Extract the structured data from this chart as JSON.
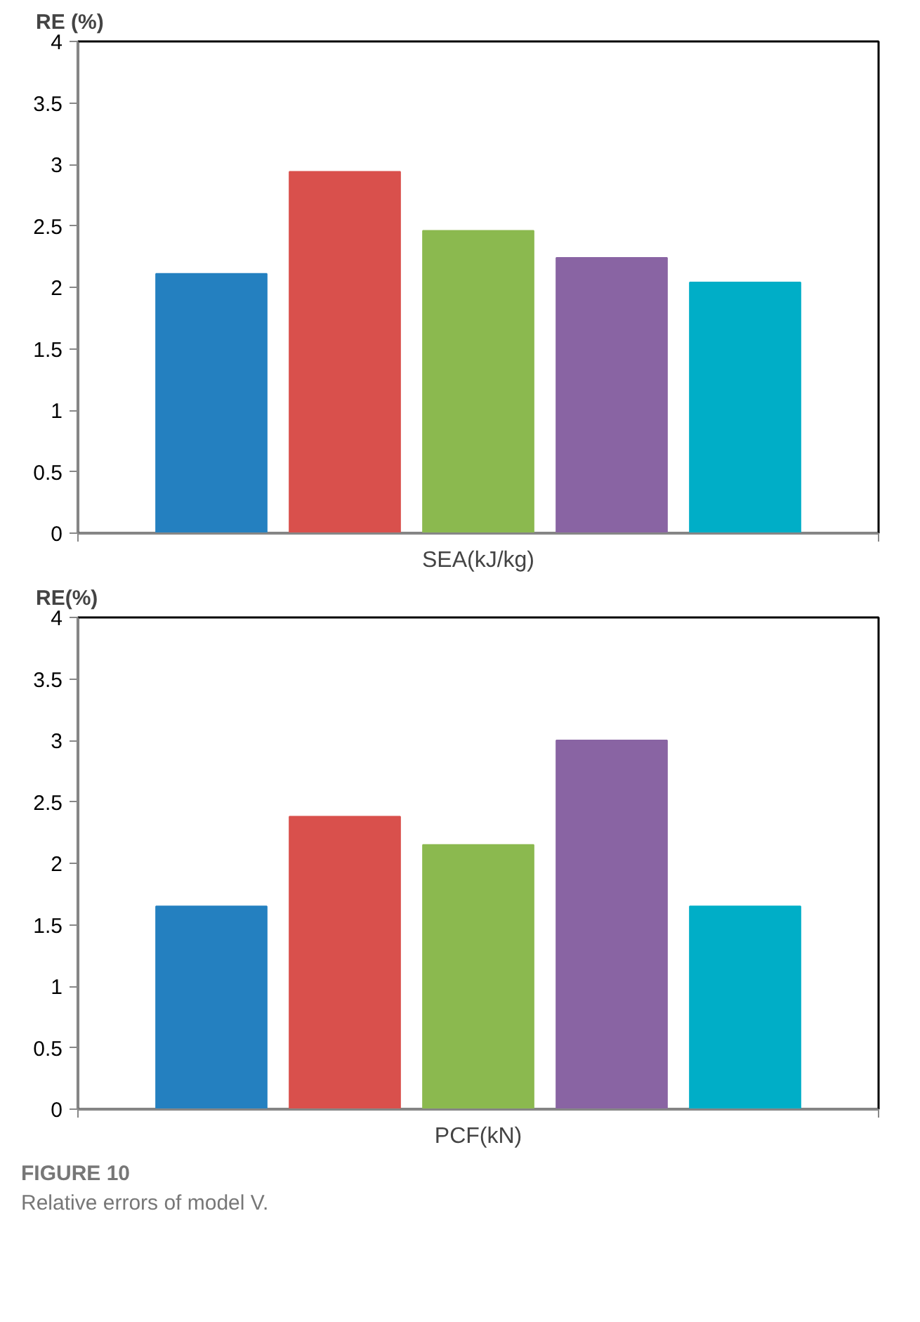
{
  "chart_data": [
    {
      "type": "bar",
      "ylabel": "RE (%)",
      "xlabel": "SEA(kJ/kg)",
      "categories": [
        null,
        null,
        null,
        null,
        null
      ],
      "values": [
        2.11,
        2.94,
        2.46,
        2.24,
        2.04
      ],
      "colors": [
        "#2480c0",
        "#d9504c",
        "#8bb94f",
        "#8964a3",
        "#00aec7"
      ],
      "ylim": [
        0,
        4
      ],
      "yticks": [
        0,
        0.5,
        1,
        1.5,
        2,
        2.5,
        3,
        3.5,
        4
      ],
      "grid": false
    },
    {
      "type": "bar",
      "ylabel": "RE(%)",
      "xlabel": "PCF(kN)",
      "categories": [
        null,
        null,
        null,
        null,
        null
      ],
      "values": [
        1.65,
        2.38,
        2.15,
        3.0,
        1.65
      ],
      "colors": [
        "#2480c0",
        "#d9504c",
        "#8bb94f",
        "#8964a3",
        "#00aec7"
      ],
      "ylim": [
        0,
        4
      ],
      "yticks": [
        0,
        0.5,
        1,
        1.5,
        2,
        2.5,
        3,
        3.5,
        4
      ],
      "grid": false,
      "annotations": [
        "FIGURE 10",
        "Relative errors of model V."
      ]
    }
  ]
}
